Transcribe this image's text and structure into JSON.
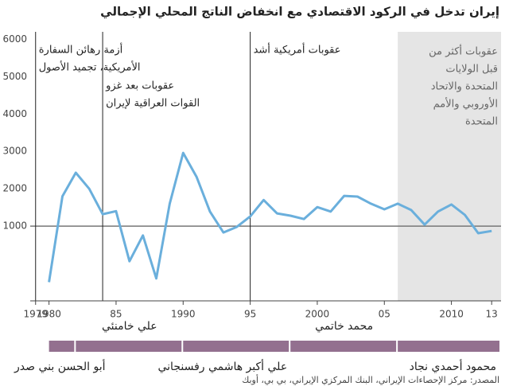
{
  "chart_data": {
    "type": "line",
    "title": "إيران تدخل في الركود الاقتصادي مع انخفاض الناتج المحلي الإجمالي",
    "x": [
      1980,
      1981,
      1982,
      1983,
      1984,
      1985,
      1986,
      1987,
      1988,
      1989,
      1990,
      1991,
      1992,
      1993,
      1994,
      1995,
      1996,
      1997,
      1998,
      1999,
      2000,
      2001,
      2002,
      2003,
      2004,
      2005,
      2006,
      2007,
      2008,
      2009,
      2010,
      2011,
      2012,
      2013
    ],
    "values": [
      -500,
      1800,
      2430,
      2000,
      1320,
      1400,
      60,
      750,
      -400,
      1600,
      2960,
      2320,
      1390,
      830,
      980,
      1260,
      1700,
      1340,
      1280,
      1190,
      1510,
      1390,
      1810,
      1790,
      1600,
      1450,
      1600,
      1430,
      1040,
      1390,
      1580,
      1300,
      810,
      870
    ],
    "color": "#6aafdc",
    "xlim": [
      1978.6,
      2013.7
    ],
    "ylim": [
      -1000,
      6200
    ],
    "yticks": [
      1000,
      2000,
      3000,
      4000,
      5000,
      6000
    ],
    "xticks": [
      1979,
      1980,
      {
        "value": 1985,
        "label": "85"
      },
      1990,
      {
        "value": 1995,
        "label": "95"
      },
      2000,
      {
        "value": 2005,
        "label": "05"
      },
      2010,
      {
        "value": 2013,
        "label": "13"
      }
    ],
    "reference_line": 1000,
    "events": [
      {
        "x": 1979,
        "lines": [
          "أزمة رهائن السفارة",
          "الأمريكية، تجميد الأصول"
        ]
      },
      {
        "x": 1984,
        "lines": [
          "عقوبات بعد غزو",
          "القوات العراقية لإيران"
        ]
      },
      {
        "x": 1995,
        "lines": [
          "عقوبات أمريكية أشد"
        ]
      }
    ],
    "shaded": {
      "from": 2006,
      "lines": [
        "عقوبات أكثر من",
        "قبل الولايات",
        "المتحدة والاتحاد",
        "الأوروبي والأمم",
        "المتحدة"
      ]
    },
    "presidents": [
      {
        "name": "أبو الحسن بني صدر",
        "start": 1980
      },
      {
        "name": "علي خامنئي",
        "start": 1982
      },
      {
        "name": "علي أكبر هاشمي رفسنجاني",
        "start": 1990
      },
      {
        "name": "محمد خاتمي",
        "start": 1998
      },
      {
        "name": "محمود أحمدي نجاد",
        "start": 2006
      }
    ],
    "source": "المصدر: مركز الإحصاءات الإيراني، البنك المركزي الإيراني، بي بي، أوبك"
  }
}
